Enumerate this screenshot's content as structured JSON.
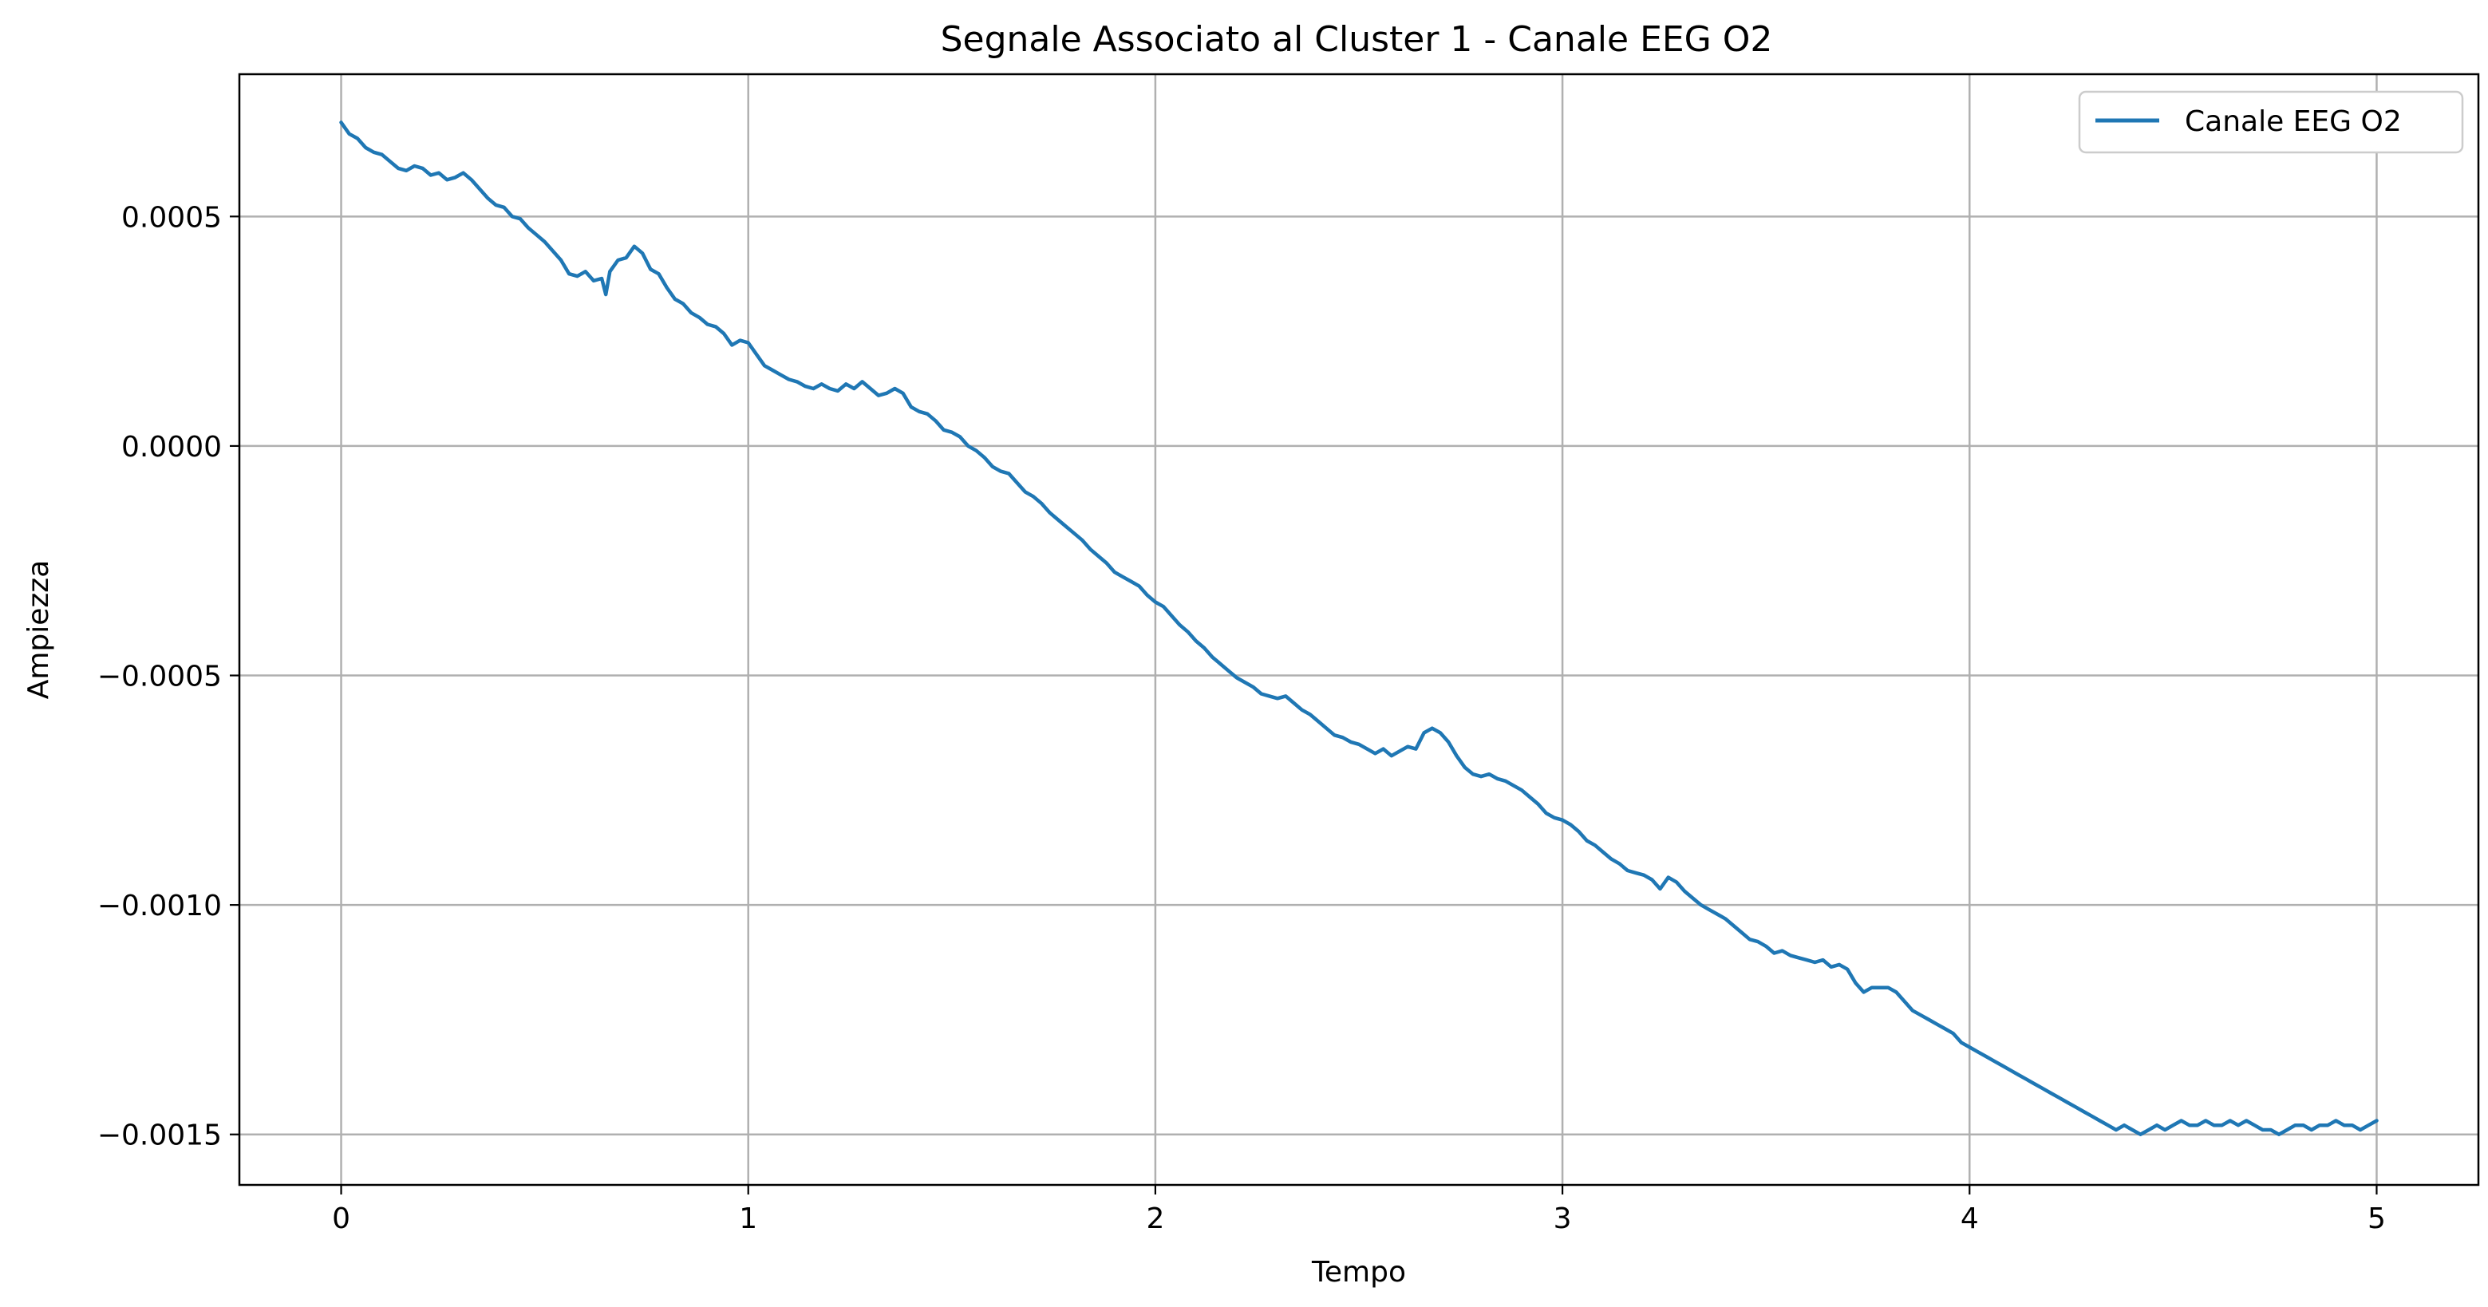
{
  "chart_data": {
    "type": "line",
    "title": "Segnale Associato al Cluster 1 - Canale EEG O2",
    "xlabel": "Tempo",
    "ylabel": "Ampiezza",
    "xlim": [
      -0.25,
      5.25
    ],
    "ylim": [
      -0.00161,
      0.00081
    ],
    "x_ticks": [
      0,
      1,
      2,
      3,
      4,
      5
    ],
    "x_tick_labels": [
      "0",
      "1",
      "2",
      "3",
      "4",
      "5"
    ],
    "y_ticks": [
      0.0005,
      0.0,
      -0.0005,
      -0.001,
      -0.0015
    ],
    "y_tick_labels": [
      "0.0005",
      "0.0000",
      "−0.0005",
      "−0.0010",
      "−0.0015"
    ],
    "grid": true,
    "legend_position": "top-right",
    "series": [
      {
        "name": "Canale EEG O2",
        "color": "#1f77b4",
        "points": [
          [
            0.0,
            0.000705
          ],
          [
            0.02,
            0.00068
          ],
          [
            0.04,
            0.00067
          ],
          [
            0.06,
            0.00065
          ],
          [
            0.08,
            0.00064
          ],
          [
            0.1,
            0.000635
          ],
          [
            0.12,
            0.00062
          ],
          [
            0.14,
            0.000605
          ],
          [
            0.16,
            0.0006
          ],
          [
            0.18,
            0.00061
          ],
          [
            0.2,
            0.000605
          ],
          [
            0.22,
            0.00059
          ],
          [
            0.24,
            0.000595
          ],
          [
            0.26,
            0.00058
          ],
          [
            0.28,
            0.000585
          ],
          [
            0.3,
            0.000595
          ],
          [
            0.32,
            0.00058
          ],
          [
            0.34,
            0.00056
          ],
          [
            0.36,
            0.00054
          ],
          [
            0.38,
            0.000525
          ],
          [
            0.4,
            0.00052
          ],
          [
            0.42,
            0.0005
          ],
          [
            0.44,
            0.000495
          ],
          [
            0.46,
            0.000475
          ],
          [
            0.48,
            0.00046
          ],
          [
            0.5,
            0.000445
          ],
          [
            0.52,
            0.000425
          ],
          [
            0.54,
            0.000405
          ],
          [
            0.56,
            0.000375
          ],
          [
            0.58,
            0.00037
          ],
          [
            0.6,
            0.00038
          ],
          [
            0.62,
            0.00036
          ],
          [
            0.64,
            0.000365
          ],
          [
            0.65,
            0.00033
          ],
          [
            0.66,
            0.00038
          ],
          [
            0.68,
            0.000405
          ],
          [
            0.7,
            0.00041
          ],
          [
            0.72,
            0.000435
          ],
          [
            0.74,
            0.00042
          ],
          [
            0.76,
            0.000385
          ],
          [
            0.78,
            0.000375
          ],
          [
            0.8,
            0.000345
          ],
          [
            0.82,
            0.00032
          ],
          [
            0.84,
            0.00031
          ],
          [
            0.86,
            0.00029
          ],
          [
            0.88,
            0.00028
          ],
          [
            0.9,
            0.000265
          ],
          [
            0.92,
            0.00026
          ],
          [
            0.94,
            0.000245
          ],
          [
            0.96,
            0.00022
          ],
          [
            0.98,
            0.00023
          ],
          [
            1.0,
            0.000225
          ],
          [
            1.02,
            0.0002
          ],
          [
            1.04,
            0.000175
          ],
          [
            1.06,
            0.000165
          ],
          [
            1.08,
            0.000155
          ],
          [
            1.1,
            0.000145
          ],
          [
            1.12,
            0.00014
          ],
          [
            1.14,
            0.00013
          ],
          [
            1.16,
            0.000125
          ],
          [
            1.18,
            0.000135
          ],
          [
            1.2,
            0.000125
          ],
          [
            1.22,
            0.00012
          ],
          [
            1.24,
            0.000135
          ],
          [
            1.26,
            0.000125
          ],
          [
            1.28,
            0.00014
          ],
          [
            1.3,
            0.000125
          ],
          [
            1.32,
            0.00011
          ],
          [
            1.34,
            0.000115
          ],
          [
            1.36,
            0.000125
          ],
          [
            1.38,
            0.000115
          ],
          [
            1.4,
            8.5e-05
          ],
          [
            1.42,
            7.5e-05
          ],
          [
            1.44,
            7e-05
          ],
          [
            1.46,
            5.5e-05
          ],
          [
            1.48,
            3.5e-05
          ],
          [
            1.5,
            3e-05
          ],
          [
            1.52,
            2e-05
          ],
          [
            1.54,
            0.0
          ],
          [
            1.56,
            -1e-05
          ],
          [
            1.58,
            -2.5e-05
          ],
          [
            1.6,
            -4.5e-05
          ],
          [
            1.62,
            -5.5e-05
          ],
          [
            1.64,
            -6e-05
          ],
          [
            1.66,
            -8e-05
          ],
          [
            1.68,
            -0.0001
          ],
          [
            1.7,
            -0.00011
          ],
          [
            1.72,
            -0.000125
          ],
          [
            1.74,
            -0.000145
          ],
          [
            1.76,
            -0.00016
          ],
          [
            1.78,
            -0.000175
          ],
          [
            1.8,
            -0.00019
          ],
          [
            1.82,
            -0.000205
          ],
          [
            1.84,
            -0.000225
          ],
          [
            1.86,
            -0.00024
          ],
          [
            1.88,
            -0.000255
          ],
          [
            1.9,
            -0.000275
          ],
          [
            1.92,
            -0.000285
          ],
          [
            1.94,
            -0.000295
          ],
          [
            1.96,
            -0.000305
          ],
          [
            1.98,
            -0.000325
          ],
          [
            2.0,
            -0.00034
          ],
          [
            2.02,
            -0.00035
          ],
          [
            2.04,
            -0.00037
          ],
          [
            2.06,
            -0.00039
          ],
          [
            2.08,
            -0.000405
          ],
          [
            2.1,
            -0.000425
          ],
          [
            2.12,
            -0.00044
          ],
          [
            2.14,
            -0.00046
          ],
          [
            2.16,
            -0.000475
          ],
          [
            2.18,
            -0.00049
          ],
          [
            2.2,
            -0.000505
          ],
          [
            2.22,
            -0.000515
          ],
          [
            2.24,
            -0.000525
          ],
          [
            2.26,
            -0.00054
          ],
          [
            2.28,
            -0.000545
          ],
          [
            2.3,
            -0.00055
          ],
          [
            2.32,
            -0.000545
          ],
          [
            2.34,
            -0.00056
          ],
          [
            2.36,
            -0.000575
          ],
          [
            2.38,
            -0.000585
          ],
          [
            2.4,
            -0.0006
          ],
          [
            2.42,
            -0.000615
          ],
          [
            2.44,
            -0.00063
          ],
          [
            2.46,
            -0.000635
          ],
          [
            2.48,
            -0.000645
          ],
          [
            2.5,
            -0.00065
          ],
          [
            2.52,
            -0.00066
          ],
          [
            2.54,
            -0.00067
          ],
          [
            2.56,
            -0.00066
          ],
          [
            2.58,
            -0.000675
          ],
          [
            2.6,
            -0.000665
          ],
          [
            2.62,
            -0.000655
          ],
          [
            2.64,
            -0.00066
          ],
          [
            2.66,
            -0.000625
          ],
          [
            2.68,
            -0.000615
          ],
          [
            2.7,
            -0.000625
          ],
          [
            2.72,
            -0.000645
          ],
          [
            2.74,
            -0.000675
          ],
          [
            2.76,
            -0.0007
          ],
          [
            2.78,
            -0.000715
          ],
          [
            2.8,
            -0.00072
          ],
          [
            2.82,
            -0.000715
          ],
          [
            2.84,
            -0.000725
          ],
          [
            2.86,
            -0.00073
          ],
          [
            2.88,
            -0.00074
          ],
          [
            2.9,
            -0.00075
          ],
          [
            2.92,
            -0.000765
          ],
          [
            2.94,
            -0.00078
          ],
          [
            2.96,
            -0.0008
          ],
          [
            2.98,
            -0.00081
          ],
          [
            3.0,
            -0.000815
          ],
          [
            3.02,
            -0.000825
          ],
          [
            3.04,
            -0.00084
          ],
          [
            3.06,
            -0.00086
          ],
          [
            3.08,
            -0.00087
          ],
          [
            3.1,
            -0.000885
          ],
          [
            3.12,
            -0.0009
          ],
          [
            3.14,
            -0.00091
          ],
          [
            3.16,
            -0.000925
          ],
          [
            3.18,
            -0.00093
          ],
          [
            3.2,
            -0.000935
          ],
          [
            3.22,
            -0.000945
          ],
          [
            3.24,
            -0.000965
          ],
          [
            3.26,
            -0.00094
          ],
          [
            3.28,
            -0.00095
          ],
          [
            3.3,
            -0.00097
          ],
          [
            3.32,
            -0.000985
          ],
          [
            3.34,
            -0.001
          ],
          [
            3.36,
            -0.00101
          ],
          [
            3.38,
            -0.00102
          ],
          [
            3.4,
            -0.00103
          ],
          [
            3.42,
            -0.001045
          ],
          [
            3.44,
            -0.00106
          ],
          [
            3.46,
            -0.001075
          ],
          [
            3.48,
            -0.00108
          ],
          [
            3.5,
            -0.00109
          ],
          [
            3.52,
            -0.001105
          ],
          [
            3.54,
            -0.0011
          ],
          [
            3.56,
            -0.00111
          ],
          [
            3.58,
            -0.001115
          ],
          [
            3.6,
            -0.00112
          ],
          [
            3.62,
            -0.001125
          ],
          [
            3.64,
            -0.00112
          ],
          [
            3.66,
            -0.001135
          ],
          [
            3.68,
            -0.00113
          ],
          [
            3.7,
            -0.00114
          ],
          [
            3.72,
            -0.00117
          ],
          [
            3.74,
            -0.00119
          ],
          [
            3.76,
            -0.00118
          ],
          [
            3.78,
            -0.00118
          ],
          [
            3.8,
            -0.00118
          ],
          [
            3.82,
            -0.00119
          ],
          [
            3.84,
            -0.00121
          ],
          [
            3.86,
            -0.00123
          ],
          [
            3.88,
            -0.00124
          ],
          [
            3.9,
            -0.00125
          ],
          [
            3.92,
            -0.00126
          ],
          [
            3.94,
            -0.00127
          ],
          [
            3.96,
            -0.00128
          ],
          [
            3.98,
            -0.0013
          ],
          [
            4.0,
            -0.00131
          ],
          [
            4.02,
            -0.00132
          ],
          [
            4.04,
            -0.00133
          ],
          [
            4.06,
            -0.00134
          ],
          [
            4.08,
            -0.00135
          ],
          [
            4.1,
            -0.00136
          ],
          [
            4.12,
            -0.00137
          ],
          [
            4.14,
            -0.00138
          ],
          [
            4.16,
            -0.00139
          ],
          [
            4.18,
            -0.0014
          ],
          [
            4.2,
            -0.00141
          ],
          [
            4.22,
            -0.00142
          ],
          [
            4.24,
            -0.00143
          ],
          [
            4.26,
            -0.00144
          ],
          [
            4.28,
            -0.00145
          ],
          [
            4.3,
            -0.00146
          ],
          [
            4.32,
            -0.00147
          ],
          [
            4.34,
            -0.00148
          ],
          [
            4.36,
            -0.00149
          ],
          [
            4.38,
            -0.00148
          ],
          [
            4.4,
            -0.00149
          ],
          [
            4.42,
            -0.0015
          ],
          [
            4.44,
            -0.00149
          ],
          [
            4.46,
            -0.00148
          ],
          [
            4.48,
            -0.00149
          ],
          [
            4.5,
            -0.00148
          ],
          [
            4.52,
            -0.00147
          ],
          [
            4.54,
            -0.00148
          ],
          [
            4.56,
            -0.00148
          ],
          [
            4.58,
            -0.00147
          ],
          [
            4.6,
            -0.00148
          ],
          [
            4.62,
            -0.00148
          ],
          [
            4.64,
            -0.00147
          ],
          [
            4.66,
            -0.00148
          ],
          [
            4.68,
            -0.00147
          ],
          [
            4.7,
            -0.00148
          ],
          [
            4.72,
            -0.00149
          ],
          [
            4.74,
            -0.00149
          ],
          [
            4.76,
            -0.0015
          ],
          [
            4.78,
            -0.00149
          ],
          [
            4.8,
            -0.00148
          ],
          [
            4.82,
            -0.00148
          ],
          [
            4.84,
            -0.00149
          ],
          [
            4.86,
            -0.00148
          ],
          [
            4.88,
            -0.00148
          ],
          [
            4.9,
            -0.00147
          ],
          [
            4.92,
            -0.00148
          ],
          [
            4.94,
            -0.00148
          ],
          [
            4.96,
            -0.00149
          ],
          [
            4.98,
            -0.00148
          ],
          [
            5.0,
            -0.00147
          ]
        ]
      }
    ]
  }
}
